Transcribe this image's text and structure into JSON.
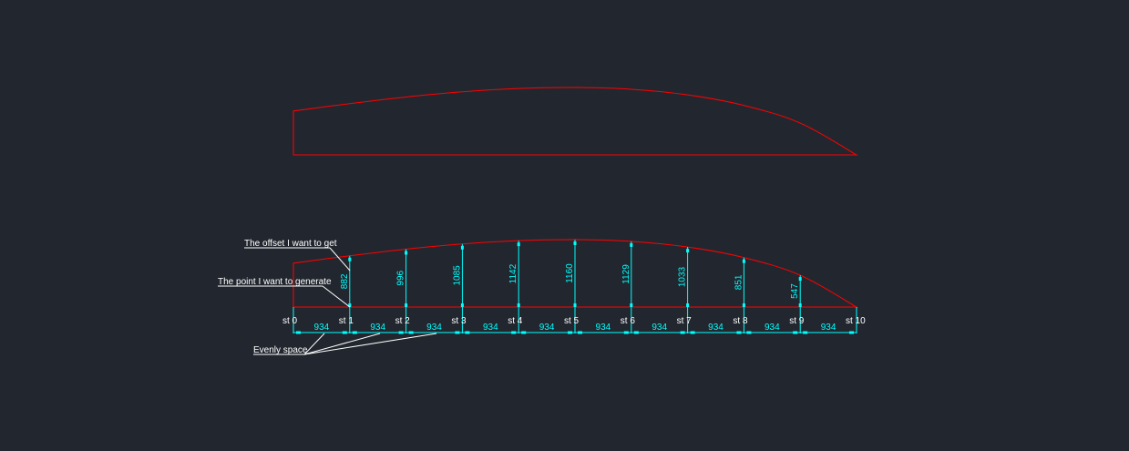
{
  "drawing": {
    "colors": {
      "background": "#22272f",
      "profile": "#ff0000",
      "dimension": "#00ffff",
      "annotation": "#ffffff"
    },
    "station_spacing": 934,
    "station_spacing_label": "934",
    "stations": [
      {
        "label": "st 0",
        "offset": null,
        "offset_label": ""
      },
      {
        "label": "st 1",
        "offset": 882,
        "offset_label": "882"
      },
      {
        "label": "st 2",
        "offset": 996,
        "offset_label": "996"
      },
      {
        "label": "st 3",
        "offset": 1085,
        "offset_label": "1085"
      },
      {
        "label": "st 4",
        "offset": 1142,
        "offset_label": "1142"
      },
      {
        "label": "st 5",
        "offset": 1160,
        "offset_label": "1160"
      },
      {
        "label": "st 6",
        "offset": 1129,
        "offset_label": "1129"
      },
      {
        "label": "st 7",
        "offset": 1033,
        "offset_label": "1033"
      },
      {
        "label": "st 8",
        "offset": 851,
        "offset_label": "851"
      },
      {
        "label": "st 9",
        "offset": 547,
        "offset_label": "547"
      },
      {
        "label": "st 10",
        "offset": 0,
        "offset_label": ""
      }
    ],
    "annotations": {
      "offset_note": "The offset I want to get",
      "point_note": "The point I want to generate",
      "spacing_note": "Evenly space"
    }
  }
}
